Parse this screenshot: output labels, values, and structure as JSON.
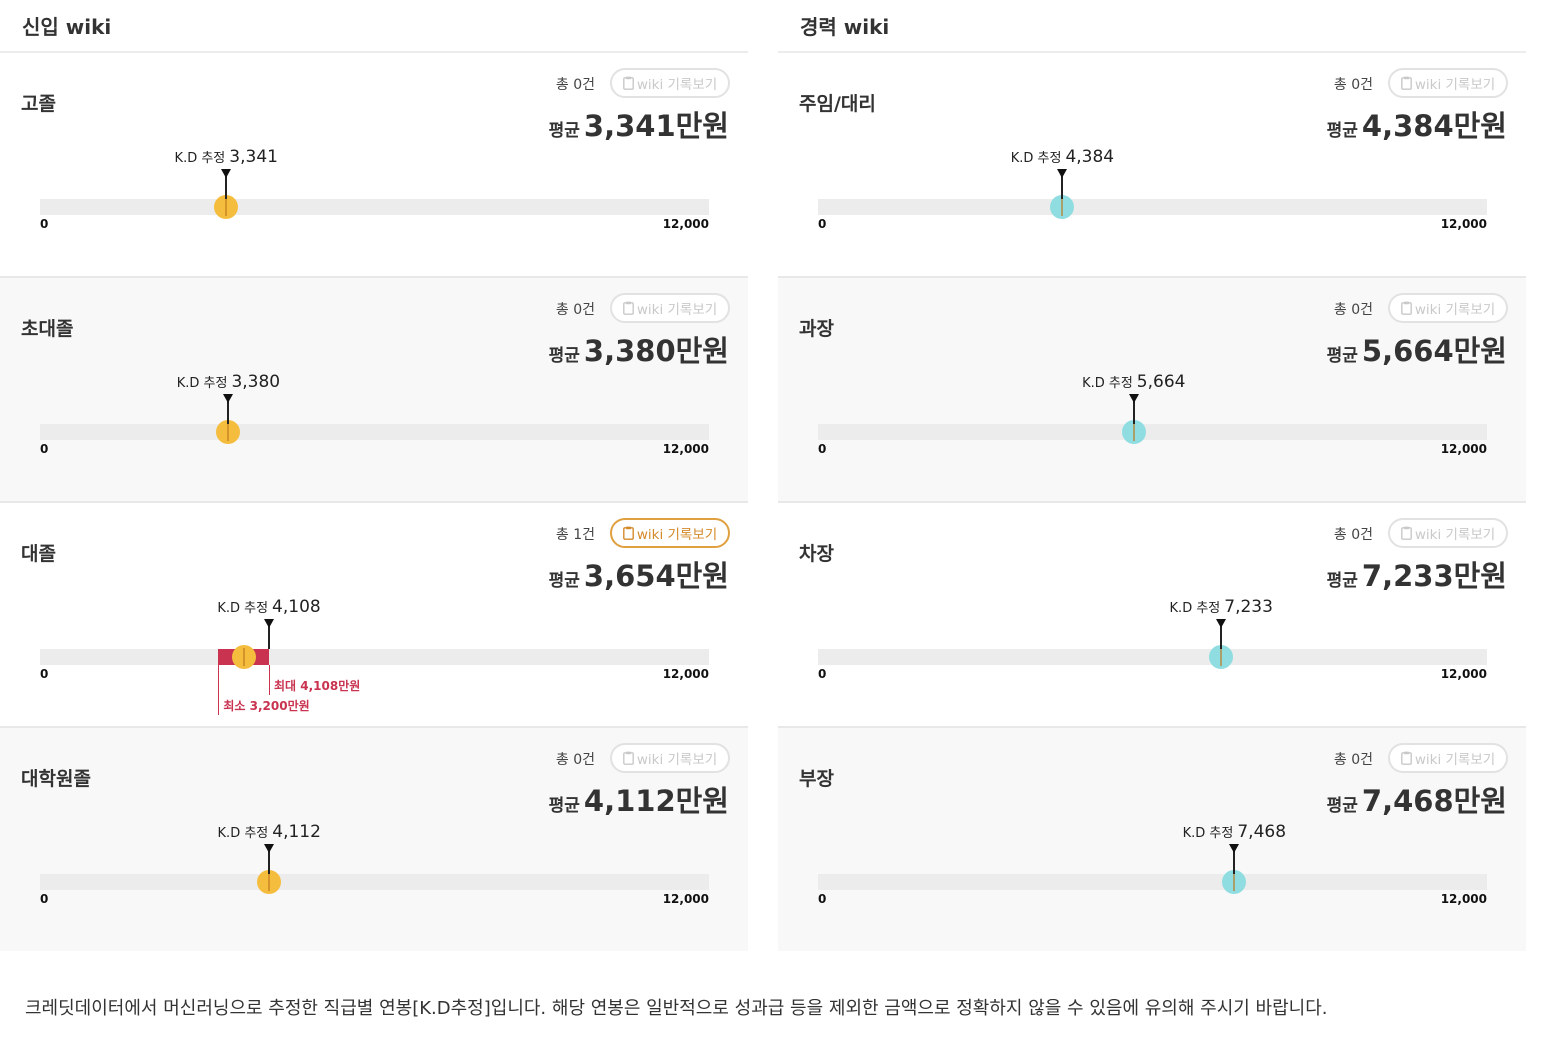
{
  "columns": [
    {
      "title": "신입 wiki",
      "theme": "fresh",
      "cards": [
        {
          "label": "고졸",
          "count": "총 0건",
          "button": "wiki 기록보기",
          "button_active": false,
          "avg_label": "평균",
          "avg_value": "3,341",
          "avg_unit": "만원",
          "kd_label": "K.D 추정",
          "kd_value": "3,341",
          "kd": 3341,
          "min": 0,
          "max": 12000,
          "min_label": "0",
          "max_label": "12,000"
        },
        {
          "label": "초대졸",
          "count": "총 0건",
          "button": "wiki 기록보기",
          "button_active": false,
          "avg_label": "평균",
          "avg_value": "3,380",
          "avg_unit": "만원",
          "kd_label": "K.D 추정",
          "kd_value": "3,380",
          "kd": 3380,
          "min": 0,
          "max": 12000,
          "min_label": "0",
          "max_label": "12,000"
        },
        {
          "label": "대졸",
          "count": "총 1건",
          "button": "wiki 기록보기",
          "button_active": true,
          "avg_label": "평균",
          "avg_value": "3,654",
          "avg_unit": "만원",
          "kd_label": "K.D 추정",
          "kd_value": "4,108",
          "kd": 4108,
          "dot": 3654,
          "range": {
            "min": 3200,
            "max": 4108,
            "min_text": "최소 3,200만원",
            "max_text": "최대 4,108만원"
          },
          "min": 0,
          "max": 12000,
          "min_label": "0",
          "max_label": "12,000"
        },
        {
          "label": "대학원졸",
          "count": "총 0건",
          "button": "wiki 기록보기",
          "button_active": false,
          "avg_label": "평균",
          "avg_value": "4,112",
          "avg_unit": "만원",
          "kd_label": "K.D 추정",
          "kd_value": "4,112",
          "kd": 4112,
          "min": 0,
          "max": 12000,
          "min_label": "0",
          "max_label": "12,000"
        }
      ]
    },
    {
      "title": "경력 wiki",
      "theme": "exp",
      "cards": [
        {
          "label": "주임/대리",
          "count": "총 0건",
          "button": "wiki 기록보기",
          "button_active": false,
          "avg_label": "평균",
          "avg_value": "4,384",
          "avg_unit": "만원",
          "kd_label": "K.D 추정",
          "kd_value": "4,384",
          "kd": 4384,
          "min": 0,
          "max": 12000,
          "min_label": "0",
          "max_label": "12,000"
        },
        {
          "label": "과장",
          "count": "총 0건",
          "button": "wiki 기록보기",
          "button_active": false,
          "avg_label": "평균",
          "avg_value": "5,664",
          "avg_unit": "만원",
          "kd_label": "K.D 추정",
          "kd_value": "5,664",
          "kd": 5664,
          "min": 0,
          "max": 12000,
          "min_label": "0",
          "max_label": "12,000"
        },
        {
          "label": "차장",
          "count": "총 0건",
          "button": "wiki 기록보기",
          "button_active": false,
          "avg_label": "평균",
          "avg_value": "7,233",
          "avg_unit": "만원",
          "kd_label": "K.D 추정",
          "kd_value": "7,233",
          "kd": 7233,
          "min": 0,
          "max": 12000,
          "min_label": "0",
          "max_label": "12,000"
        },
        {
          "label": "부장",
          "count": "총 0건",
          "button": "wiki 기록보기",
          "button_active": false,
          "avg_label": "평균",
          "avg_value": "7,468",
          "avg_unit": "만원",
          "kd_label": "K.D 추정",
          "kd_value": "7,468",
          "kd": 7468,
          "min": 0,
          "max": 12000,
          "min_label": "0",
          "max_label": "12,000"
        }
      ]
    }
  ],
  "colors": {
    "fresh_dot": "#f5bd3d",
    "exp_dot": "#8fdde0",
    "range": "#c9334f",
    "active_button": "#e0a040"
  },
  "icons": {
    "button_icon": "clipboard-icon"
  },
  "footnote": "크레딧데이터에서 머신러닝으로 추정한 직급별 연봉[K.D추정]입니다. 해당 연봉은 일반적으로 성과급 등을 제외한 금액으로 정확하지 않을 수 있음에 유의해 주시기 바랍니다."
}
